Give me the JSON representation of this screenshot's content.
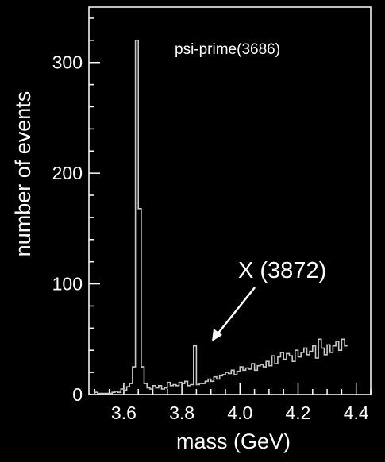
{
  "chart_data": {
    "type": "histogram",
    "title": "",
    "xlabel": "mass (GeV)",
    "ylabel": "number of events",
    "xlim": [
      3.48,
      4.45
    ],
    "ylim": [
      0,
      350
    ],
    "x_ticks": [
      {
        "value": 3.6,
        "label": "3.6"
      },
      {
        "value": 3.8,
        "label": "3.8"
      },
      {
        "value": 4.0,
        "label": "4.0"
      },
      {
        "value": 4.2,
        "label": "4.2"
      },
      {
        "value": 4.4,
        "label": "4.4"
      }
    ],
    "y_ticks": [
      {
        "value": 0,
        "label": "0"
      },
      {
        "value": 100,
        "label": "100"
      },
      {
        "value": 200,
        "label": "200"
      },
      {
        "value": 300,
        "label": "300"
      }
    ],
    "grid": false,
    "bin_width": 0.01,
    "series": [
      {
        "bin_start": 3.5,
        "values": [
          2,
          1,
          1,
          1,
          1,
          1,
          2,
          3,
          2,
          5,
          4,
          7,
          10,
          25,
          320,
          168,
          25,
          10,
          6,
          5,
          8,
          6,
          8,
          5,
          6,
          11,
          8,
          9,
          8,
          11,
          10,
          12,
          8,
          9,
          44,
          9,
          10,
          10,
          12,
          14,
          12,
          16,
          14,
          17,
          18,
          20,
          19,
          22,
          18,
          21,
          25,
          22,
          24,
          23,
          28,
          22,
          26,
          27,
          25,
          30,
          26,
          35,
          28,
          34,
          38,
          32,
          37,
          35,
          30,
          40,
          34,
          38,
          42,
          36,
          39,
          44,
          33,
          50,
          42,
          36,
          45,
          38,
          44,
          48,
          40,
          50,
          44
        ]
      }
    ],
    "annotations": [
      {
        "text": "psi-prime(3686)",
        "x": 3.686
      },
      {
        "text": "X (3872)",
        "x": 3.872
      }
    ],
    "colors": {
      "background": "#000000",
      "foreground": "#ffffff",
      "histogram": "#c8c8c8"
    }
  }
}
